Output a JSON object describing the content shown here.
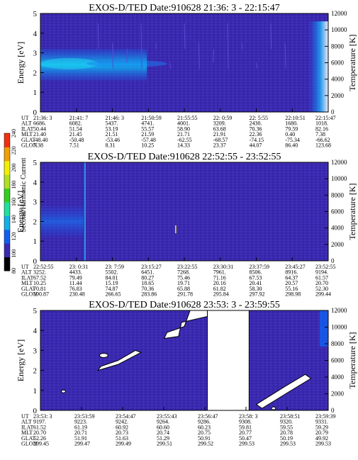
{
  "palette": {
    "background": "#3a2ab0",
    "cb_stops": [
      "#000000",
      "#3a2ab0",
      "#1060f0",
      "#10b0e8",
      "#20e0a0",
      "#30d020",
      "#b0e020",
      "#f0f000",
      "#f0a000",
      "#f03010"
    ]
  },
  "colorbar": {
    "label": "Second Harmonic Current",
    "ticks": [
      "80",
      "100",
      "120",
      "140",
      "160",
      "180",
      "200",
      "220",
      "240"
    ]
  },
  "row_labels": [
    "UT",
    "ALT",
    "ILAT",
    "MLT",
    "GLAT",
    "GLON"
  ],
  "chart_data": [
    {
      "type": "heatmap",
      "title": "EXOS-D/TED   Date:910628  21:36: 3 - 22:15:47",
      "ylabel": "Energy [eV]",
      "y2label": "Temperature [K]",
      "ylim": [
        0,
        5
      ],
      "y_ticks": [
        "0",
        "1",
        "2",
        "3",
        "4",
        "5"
      ],
      "y2lim": [
        0,
        12000
      ],
      "y2_ticks": [
        "0",
        "2000",
        "4000",
        "6000",
        "8000",
        "10000",
        "12000"
      ],
      "features": [
        "intense band near 2-3 eV from 21:36 to ~21:52",
        "bright region at 22:14-22:15 spanning 0-4.6 eV"
      ],
      "table": [
        [
          "21:36: 3",
          "21:41: 7",
          "21:46: 3",
          "21:50:59",
          "21:55:55",
          "22: 0:59",
          "22: 5:55",
          "22:10:51",
          "22:15:47"
        ],
        [
          "6686.",
          "6082.",
          "5437.",
          "4741.",
          "4001.",
          "3209.",
          "2430.",
          "1680.",
          "1018."
        ],
        [
          "50.44",
          "51.54",
          "53.19",
          "55.57",
          "58.90",
          "63.68",
          "70.36",
          "79.59",
          "82.16"
        ],
        [
          "21.40",
          "21.45",
          "21.51",
          "21.59",
          "21.71",
          "21.91",
          "22.36",
          "0.40",
          "7.38"
        ],
        [
          "-48.40",
          "-50.48",
          "-53.46",
          "-57.48",
          "-62.55",
          "-68.57",
          "-74.15",
          "-75.34",
          "-66.62"
        ],
        [
          "7.38",
          "7.51",
          "8.31",
          "10.25",
          "14.33",
          "23.37",
          "44.07",
          "86.40",
          "123.68"
        ]
      ]
    },
    {
      "type": "heatmap",
      "title": "EXOS-D/TED   Date:910628  22:52:55 - 23:52:55",
      "ylabel": "Energy [eV]",
      "y2label": "Temperature [K]",
      "ylim": [
        0,
        5
      ],
      "y_ticks": [
        "0",
        "1",
        "2",
        "3",
        "4",
        "5"
      ],
      "y2lim": [
        0,
        12000
      ],
      "y2_ticks": [
        "0",
        "2000",
        "4000",
        "6000",
        "8000",
        "10000",
        "12000"
      ],
      "features": [
        "weak band near 2 eV from 22:52 to ~23:00",
        "vertical streak near 23:00"
      ],
      "table": [
        [
          "22:52:55",
          "23: 0:31",
          "23: 7:59",
          "23:15:27",
          "23:22:55",
          "23:30:31",
          "23:37:59",
          "23:45:27",
          "23:52:55"
        ],
        [
          "3252.",
          "4433.",
          "5502.",
          "6451.",
          "7268.",
          "7961.",
          "8506.",
          "8916.",
          "9194."
        ],
        [
          "67.52",
          "79.49",
          "84.01",
          "80.27",
          "75.46",
          "71.16",
          "67.53",
          "64.37",
          "61.57"
        ],
        [
          "10.25",
          "11.44",
          "15.19",
          "18.65",
          "19.71",
          "20.16",
          "20.41",
          "20.57",
          "20.70"
        ],
        [
          "70.81",
          "76.83",
          "74.87",
          "70.36",
          "65.88",
          "61.82",
          "58.30",
          "55.16",
          "52.30"
        ],
        [
          "190.87",
          "230.48",
          "266.65",
          "283.86",
          "291.78",
          "295.84",
          "297.92",
          "298.98",
          "299.44"
        ]
      ]
    },
    {
      "type": "heatmap",
      "title": "EXOS-D/TED   Date:910628  23:53: 3 - 23:59:55",
      "ylabel": "Energy [eV]",
      "y2label": "Temperature [K]",
      "ylim": [
        0,
        5
      ],
      "y_ticks": [
        "0",
        "1",
        "2",
        "3",
        "4",
        "5"
      ],
      "y2lim": [
        0,
        12000
      ],
      "y2_ticks": [
        "0",
        "2000",
        "4000",
        "6000",
        "8000",
        "10000",
        "12000"
      ],
      "features": [
        "white gaps (no data)",
        "data gap ~23:56:47 to 23:58:03"
      ],
      "table": [
        [
          "23:53: 3",
          "23:53:59",
          "23:54:47",
          "23:55:43",
          "23:56:47",
          "23:58: 3",
          "23:58:51",
          "23:59:39"
        ],
        [
          "9197.",
          "9223.",
          "9242.",
          "9264.",
          "9286.",
          "9308.",
          "9320.",
          "9331."
        ],
        [
          "61.52",
          "61.19",
          "60.92",
          "60.60",
          "60.23",
          "59.81",
          "59.55",
          "59.29"
        ],
        [
          "20.70",
          "20.71",
          "20.73",
          "20.74",
          "20.75",
          "20.77",
          "20.78",
          "20.79"
        ],
        [
          "52.26",
          "51.91",
          "51.63",
          "51.29",
          "50.91",
          "50.47",
          "50.19",
          "49.92"
        ],
        [
          "299.45",
          "299.47",
          "299.49",
          "299.51",
          "299.52",
          "299.53",
          "299.53",
          "299.53"
        ]
      ]
    }
  ]
}
